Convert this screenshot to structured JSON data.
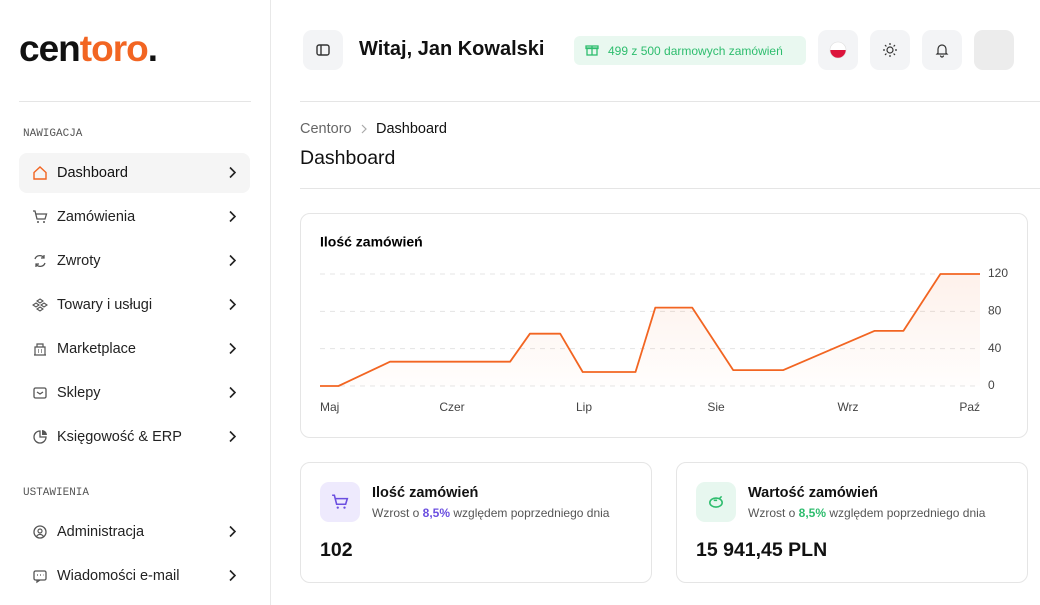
{
  "logo": {
    "dark": "cen",
    "accent": "toro",
    "dot": "."
  },
  "sidebar": {
    "sections": [
      {
        "title": "NAWIGACJA",
        "items": [
          "Dashboard",
          "Zamówienia",
          "Zwroty",
          "Towary i usługi",
          "Marketplace",
          "Sklepy",
          "Księgowość & ERP"
        ]
      },
      {
        "title": "USTAWIENIA",
        "items": [
          "Administracja",
          "Wiadomości e-mail"
        ]
      }
    ]
  },
  "header": {
    "greeting": "Witaj, Jan Kowalski",
    "badge": "499 z 500 darmowych zamówień"
  },
  "breadcrumb": [
    "Centoro",
    "Dashboard"
  ],
  "page_title": "Dashboard",
  "chart_data": {
    "type": "line",
    "title": "Ilość zamówień",
    "color": "#f26522",
    "x": [
      0,
      0.14,
      0.53,
      1.44,
      1.59,
      1.82,
      1.99,
      2.39,
      2.54,
      2.82,
      3.13,
      3.51,
      4.2,
      4.42,
      4.7,
      5
    ],
    "values": [
      0,
      0,
      26,
      26,
      56,
      56,
      15,
      15,
      84,
      84,
      17,
      17,
      59,
      59,
      120,
      120
    ],
    "xlim": [
      0,
      5
    ],
    "xticks": [
      {
        "value": 0,
        "label": "Maj"
      },
      {
        "value": 1,
        "label": "Czer"
      },
      {
        "value": 2,
        "label": "Lip"
      },
      {
        "value": 3,
        "label": "Sie"
      },
      {
        "value": 4,
        "label": "Wrz"
      },
      {
        "value": 5,
        "label": "Paź"
      }
    ],
    "ylim": [
      0,
      120
    ],
    "yticks": [
      0,
      40,
      80,
      120
    ],
    "grid": true
  },
  "stats": [
    {
      "title": "Ilość zamówień",
      "desc_prefix": "Wzrost o ",
      "desc_value": "8,5%",
      "desc_suffix": " względem poprzedniego dnia",
      "value": "102"
    },
    {
      "title": "Wartość zamówień",
      "desc_prefix": "Wzrost o ",
      "desc_value": "8,5%",
      "desc_suffix": " względem poprzedniego dnia",
      "value": "15 941,45 PLN"
    }
  ]
}
